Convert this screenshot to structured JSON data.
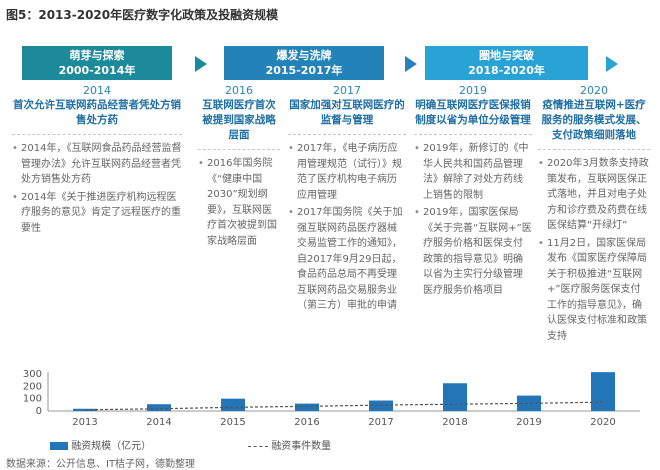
{
  "title": "图5：2013-2020年医疗数字化政策及投融资规模",
  "phases": [
    {
      "name": "萌芽与探索",
      "period": "2000-2014年"
    },
    {
      "name": "爆发与洗牌",
      "period": "2015-2017年"
    },
    {
      "name": "圈地与突破",
      "period": "2018-2020年"
    }
  ],
  "columns": [
    {
      "year": "2014",
      "heading": "首次允许互联网药品经营者凭处方销售处方药",
      "bullets": [
        "2014年，《互联网食品药品经营监督管理办法》允许互联网药品经营者凭处方销售处方药",
        "2014年《关于推进医疗机构远程医疗服务的意见》肯定了远程医疗的重要性"
      ]
    },
    {
      "year": "2016",
      "heading": "互联网医疗首次被提到国家战略层面",
      "bullets": [
        "2016年国务院《“健康中国2030”规划纲要》，互联网医疗首次被提到国家战略层面"
      ]
    },
    {
      "year": "2017",
      "heading": "国家加强对互联网医疗的监督与管理",
      "bullets": [
        "2017年，《电子病历应用管理规范（试行）》规范了医疗机构电子病历应用管理",
        "2017年国务院《关于加强互联网药品医疗器械交易监管工作的通知》，自2017年9月29日起，食品药品总局不再受理互联网药品交易服务业（第三方）审批的申请"
      ]
    },
    {
      "year": "2019",
      "heading": "明确互联网医疗医保报销制度以省为单位分级管理",
      "bullets": [
        "2019年，新修订的《中华人民共和国药品管理法》解除了对处方药线上销售的限制",
        "2019年，国家医保局《关于完善“互联网+”医疗服务价格和医保支付政策的指导意见》明确以省为主实行分级管理医疗服务价格项目"
      ]
    },
    {
      "year": "2020",
      "heading": "疫情推进互联网+医疗服务的服务模式发展、支付政策细则落地",
      "bullets": [
        "2020年3月数条支持政策发布，互联网医保正式落地，并且对电子处方和诊疗费及药费在线医保结算“开绿灯”",
        "11月2日，国家医保局发布《国家医疗保障局关于积极推进“互联网+”医疗服务医保支付工作的指导意见》，确认医保支付标准和政策支持"
      ]
    }
  ],
  "chart_data": {
    "type": "bar",
    "categories": [
      "2013",
      "2014",
      "2015",
      "2016",
      "2017",
      "2018",
      "2019",
      "2020"
    ],
    "series": [
      {
        "name": "融资规模（亿元）",
        "type": "bar",
        "values": [
          18,
          55,
          100,
          60,
          85,
          225,
          125,
          315
        ]
      },
      {
        "name": "融资事件数量",
        "type": "line",
        "values": [
          10,
          18,
          30,
          38,
          48,
          55,
          62,
          72
        ]
      }
    ],
    "ylim": [
      0,
      300
    ],
    "yticks": [
      0,
      100,
      200,
      300
    ],
    "colors": {
      "bar": "#2276b8",
      "line": "#555555"
    },
    "legend_position": "bottom"
  },
  "source": "数据来源：公开信息、IT桔子网，德勤整理"
}
